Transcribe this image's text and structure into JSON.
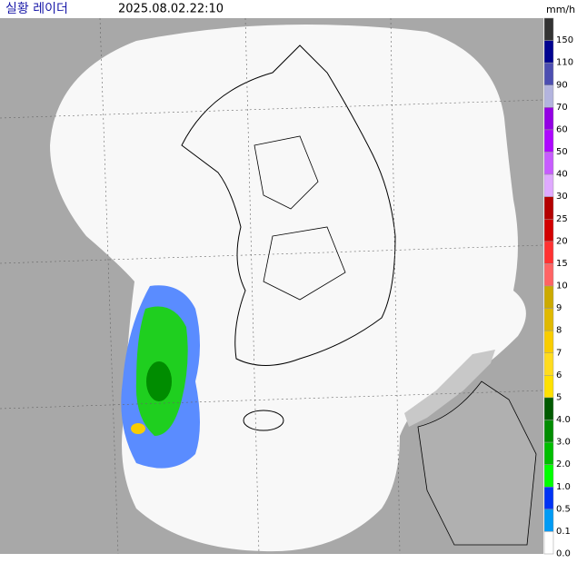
{
  "header": {
    "title": "실황 레이더",
    "timestamp": "2025.08.02.22:10",
    "unit": "mm/h"
  },
  "legend": {
    "entries": [
      {
        "label": "150",
        "color": "#333333"
      },
      {
        "label": "110",
        "color": "#000390"
      },
      {
        "label": "90",
        "color": "#4c4eb1"
      },
      {
        "label": "70",
        "color": "#b3b4de"
      },
      {
        "label": "60",
        "color": "#9300e4"
      },
      {
        "label": "50",
        "color": "#ad07ff"
      },
      {
        "label": "40",
        "color": "#c75cff"
      },
      {
        "label": "30",
        "color": "#dfa9ff"
      },
      {
        "label": "25",
        "color": "#b40000"
      },
      {
        "label": "20",
        "color": "#d20000"
      },
      {
        "label": "15",
        "color": "#ff3232"
      },
      {
        "label": "10",
        "color": "#ff6464"
      },
      {
        "label": "9",
        "color": "#ccaa00"
      },
      {
        "label": "8",
        "color": "#e0b900"
      },
      {
        "label": "7",
        "color": "#f9cd00"
      },
      {
        "label": "6",
        "color": "#ffdc1f"
      },
      {
        "label": "5",
        "color": "#ffe100"
      },
      {
        "label": "4.0",
        "color": "#005a00"
      },
      {
        "label": "3.0",
        "color": "#008c00"
      },
      {
        "label": "2.0",
        "color": "#00be00"
      },
      {
        "label": "1.0",
        "color": "#00ff00"
      },
      {
        "label": "0.5",
        "color": "#0033f5"
      },
      {
        "label": "0.1",
        "color": "#009bf5"
      },
      {
        "label": "0.0",
        "color": "#ffffff"
      }
    ]
  }
}
